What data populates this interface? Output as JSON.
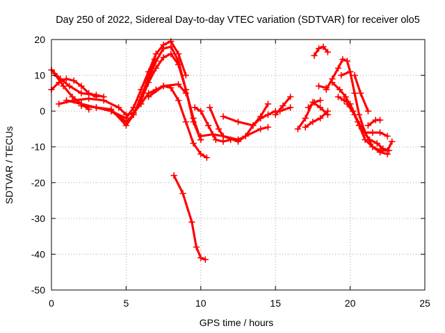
{
  "chart_data": {
    "type": "scatter",
    "title": "Day 250 of 2022, Sidereal Day-to-day VTEC variation (SDTVAR) for receiver olo5",
    "xlabel": "GPS time / hours",
    "ylabel": "SDTVAR / TECUs",
    "xlim": [
      0,
      25
    ],
    "ylim": [
      -50,
      20
    ],
    "xticks": [
      "0",
      "5",
      "10",
      "15",
      "20",
      "25"
    ],
    "xtick_values": [
      0,
      5,
      10,
      15,
      20,
      25
    ],
    "yticks": [
      "20",
      "10",
      "0",
      "-10",
      "-20",
      "-30",
      "-40",
      "-50"
    ],
    "ytick_values": [
      20,
      10,
      0,
      -10,
      -20,
      -30,
      -40,
      -50
    ],
    "grid": true,
    "marker": "+",
    "color": "#ff0000",
    "series": [
      {
        "name": "s01",
        "x": [
          0.0,
          0.5,
          1.0,
          1.5,
          2.0,
          2.5,
          3.0
        ],
        "y": [
          6,
          8,
          9,
          8.5,
          7,
          5,
          4
        ]
      },
      {
        "name": "s02",
        "x": [
          0.0,
          0.6,
          1.2,
          2.0,
          3.0,
          3.5
        ],
        "y": [
          11.5,
          9,
          7,
          5,
          4.5,
          4
        ]
      },
      {
        "name": "s03",
        "x": [
          0.2,
          0.8,
          1.4,
          2.0,
          2.5
        ],
        "y": [
          10.5,
          7,
          4,
          2,
          0.5
        ]
      },
      {
        "name": "s04",
        "x": [
          0.5,
          1.5,
          2.5,
          3.5,
          4.5,
          5.0,
          5.5,
          6.0,
          6.5,
          7.0,
          7.5,
          8.0,
          8.5,
          9.0,
          9.5,
          10.0,
          10.4
        ],
        "y": [
          2,
          3,
          3.5,
          3,
          1,
          -1,
          -0.5,
          2,
          5,
          6,
          7,
          6.5,
          3,
          -3,
          -9,
          -12,
          -13
        ]
      },
      {
        "name": "s05",
        "x": [
          1.0,
          2.0,
          3.0,
          4.0,
          5.0,
          5.5,
          6.0,
          6.5,
          7.0,
          7.5,
          8.0,
          8.5,
          9.0,
          9.5,
          10.0
        ],
        "y": [
          3,
          2,
          1,
          0,
          -3,
          -1,
          3,
          8,
          12,
          15,
          16,
          13,
          6,
          -2,
          -8
        ]
      },
      {
        "name": "s06",
        "x": [
          2.0,
          3.0,
          4.0,
          5.0,
          5.5,
          6.0,
          6.5,
          7.0,
          7.5,
          8.0,
          8.5,
          9.0,
          9.5,
          10.0
        ],
        "y": [
          1.5,
          1,
          0.5,
          -4,
          -1,
          4,
          9,
          14,
          17.5,
          18,
          14,
          6,
          -3,
          -8
        ]
      },
      {
        "name": "s07",
        "x": [
          3.0,
          4.0,
          5.0,
          5.5,
          6.0,
          6.5,
          7.0,
          7.5,
          8.0,
          8.5,
          9.0
        ],
        "y": [
          1,
          0,
          -2,
          1,
          6,
          11,
          16,
          18.5,
          19.5,
          16,
          10
        ]
      },
      {
        "name": "s08",
        "x": [
          6.0,
          6.3,
          6.6,
          6.9
        ],
        "y": [
          3,
          7,
          11,
          14.5
        ]
      },
      {
        "name": "s09",
        "x": [
          6.5,
          7.5,
          8.5,
          9.0
        ],
        "y": [
          4,
          7,
          7.5,
          5
        ]
      },
      {
        "name": "s10",
        "x": [
          8.2,
          8.8,
          9.4,
          9.7,
          10.0,
          10.3
        ],
        "y": [
          -18,
          -23,
          -31,
          -38,
          -41,
          -41.5
        ]
      },
      {
        "name": "s11",
        "x": [
          9.6,
          10.0,
          10.5,
          11.0,
          11.5,
          12.0
        ],
        "y": [
          1,
          0,
          -4,
          -8,
          -8.5,
          -8
        ]
      },
      {
        "name": "s12",
        "x": [
          10.0,
          10.8,
          11.5,
          12.5,
          13.0,
          14.0,
          14.5
        ],
        "y": [
          -7,
          -6.5,
          -7,
          -8.5,
          -7,
          -5,
          -4.5
        ]
      },
      {
        "name": "s13",
        "x": [
          10.6,
          11.2,
          11.5,
          12.5
        ],
        "y": [
          1,
          -5,
          -7,
          -8
        ]
      },
      {
        "name": "s14",
        "x": [
          11.5,
          12.5,
          13.5,
          14.0,
          14.5
        ],
        "y": [
          -1.5,
          -3,
          -4,
          -1.5,
          2
        ]
      },
      {
        "name": "s15",
        "x": [
          12.5,
          13.0,
          13.5,
          14.0,
          14.5,
          15.0
        ],
        "y": [
          -8,
          -7,
          -4,
          -2,
          -1,
          0
        ]
      },
      {
        "name": "s16",
        "x": [
          15.0,
          15.5,
          16.0
        ],
        "y": [
          -1,
          1.5,
          4
        ]
      },
      {
        "name": "s17",
        "x": [
          15.3,
          16.0
        ],
        "y": [
          0,
          1
        ]
      },
      {
        "name": "s18",
        "x": [
          16.5,
          17.0,
          17.5,
          18.0,
          18.5
        ],
        "y": [
          -5,
          -2,
          2.5,
          1,
          -1
        ]
      },
      {
        "name": "s19",
        "x": [
          17.0,
          17.5,
          18.0,
          18.5
        ],
        "y": [
          -4.5,
          -3,
          -2,
          0
        ]
      },
      {
        "name": "s20",
        "x": [
          17.2,
          17.6,
          18.0
        ],
        "y": [
          1,
          2.5,
          3
        ]
      },
      {
        "name": "s21",
        "x": [
          17.6,
          17.9,
          18.2,
          18.5
        ],
        "y": [
          15.5,
          17.5,
          18,
          16.5
        ]
      },
      {
        "name": "s22",
        "x": [
          17.9,
          18.4
        ],
        "y": [
          7,
          6.5
        ]
      },
      {
        "name": "s23",
        "x": [
          18.4,
          18.8,
          19.2,
          19.5,
          19.8,
          20.0,
          20.3,
          20.6,
          21.0,
          21.5,
          22.0,
          22.5,
          22.8
        ],
        "y": [
          6,
          9,
          12,
          14.5,
          14,
          11,
          5,
          -1,
          -6,
          -10,
          -11,
          -11,
          -8.5
        ]
      },
      {
        "name": "s24",
        "x": [
          18.8,
          19.3,
          19.7,
          20.2,
          20.6,
          21.0,
          21.5,
          22.0,
          22.5
        ],
        "y": [
          8,
          6,
          4,
          0,
          -4,
          -8,
          -10,
          -11.5,
          -12
        ]
      },
      {
        "name": "s25",
        "x": [
          19.2,
          19.6,
          20.0,
          20.5,
          21.0,
          21.5,
          22.0,
          22.5
        ],
        "y": [
          4,
          3,
          2,
          -3,
          -6,
          -6,
          -6,
          -7
        ]
      },
      {
        "name": "s26",
        "x": [
          19.8,
          20.3,
          20.8,
          21.3,
          21.8,
          22.2,
          22.6
        ],
        "y": [
          2,
          -1,
          -5,
          -8,
          -9,
          -10.5,
          -11
        ]
      },
      {
        "name": "s27",
        "x": [
          20.3,
          20.7,
          21.2
        ],
        "y": [
          10,
          5,
          0
        ]
      },
      {
        "name": "s28",
        "x": [
          21.2,
          21.7,
          22.0
        ],
        "y": [
          -4,
          -2.5,
          -2.5
        ]
      },
      {
        "name": "s29",
        "x": [
          19.4,
          20.0
        ],
        "y": [
          10,
          11
        ]
      }
    ]
  }
}
